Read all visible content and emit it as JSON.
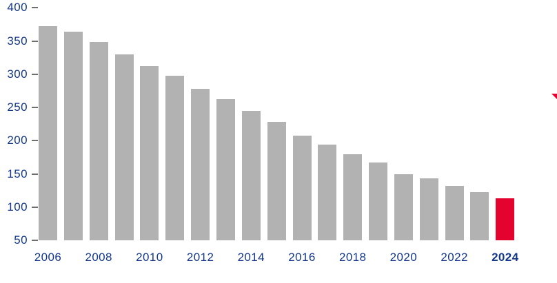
{
  "chart_data": {
    "type": "bar",
    "title": "",
    "xlabel": "",
    "ylabel": "",
    "categories": [
      "2006",
      "2007",
      "2008",
      "2009",
      "2010",
      "2011",
      "2012",
      "2013",
      "2014",
      "2015",
      "2016",
      "2017",
      "2018",
      "2019",
      "2020",
      "2021",
      "2022",
      "2023",
      "2024"
    ],
    "values": [
      372,
      364,
      348,
      330,
      312,
      298,
      278,
      262,
      245,
      228,
      208,
      194,
      180,
      167,
      149,
      143,
      132,
      123,
      113
    ],
    "y_ticks": [
      "400",
      "350",
      "300",
      "250",
      "200",
      "150",
      "100",
      "50"
    ],
    "y_tick_values": [
      400,
      350,
      300,
      250,
      200,
      150,
      100,
      50
    ],
    "x_tick_labels": [
      "2006",
      "2008",
      "2010",
      "2012",
      "2014",
      "2016",
      "2018",
      "2020",
      "2022",
      "2024"
    ],
    "ylim": [
      50,
      400
    ],
    "grid": false,
    "legend": false,
    "highlight_category": "2024",
    "colors": {
      "bar": "#b2b2b2",
      "highlight_bar": "#e3032e",
      "axis_text": "#14388c",
      "tick_mark": "#6e6e6e"
    }
  },
  "decoration": {
    "trend_arrow_color": "#e3032e"
  }
}
